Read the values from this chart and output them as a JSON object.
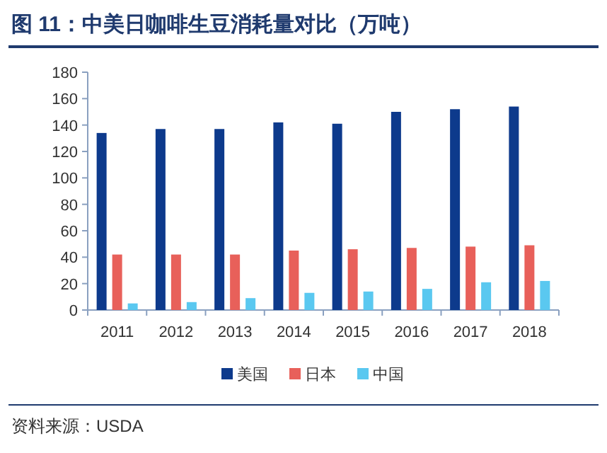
{
  "chart_data": {
    "type": "bar",
    "title": "图 11：中美日咖啡生豆消耗量对比（万吨）",
    "categories": [
      "2011",
      "2012",
      "2013",
      "2014",
      "2015",
      "2016",
      "2017",
      "2018"
    ],
    "series": [
      {
        "name": "美国",
        "color": "#0d3a8c",
        "values": [
          134,
          137,
          137,
          142,
          141,
          150,
          152,
          154
        ]
      },
      {
        "name": "日本",
        "color": "#e8605a",
        "values": [
          42,
          42,
          42,
          45,
          46,
          47,
          48,
          49
        ]
      },
      {
        "name": "中国",
        "color": "#5ac8f0",
        "values": [
          5,
          6,
          9,
          13,
          14,
          16,
          21,
          22
        ]
      }
    ],
    "ylim": [
      0,
      180
    ],
    "yticks": [
      0,
      20,
      40,
      60,
      80,
      100,
      120,
      140,
      160,
      180
    ],
    "legend": "bottom",
    "grid": false,
    "annotations": [
      "资料来源：USDA"
    ]
  }
}
